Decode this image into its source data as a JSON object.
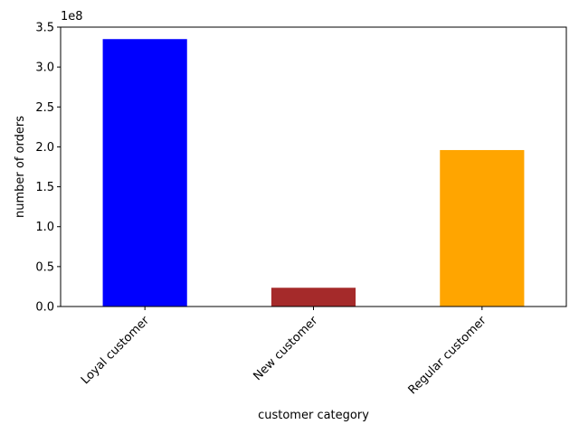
{
  "chart_data": {
    "type": "bar",
    "categories": [
      "Loyal customer",
      "New customer",
      "Regular customer"
    ],
    "values": [
      335000000,
      23500000,
      196000000
    ],
    "colors": [
      "#0000ff",
      "#a52a2a",
      "#ffa500"
    ],
    "xlabel": "customer category",
    "ylabel": "number of orders",
    "y_offset_label": "1e8",
    "ylim": [
      0,
      350000000
    ],
    "yticks": [
      0,
      50000000,
      100000000,
      150000000,
      200000000,
      250000000,
      300000000,
      350000000
    ],
    "ytick_labels": [
      "0.0",
      "0.5",
      "1.0",
      "1.5",
      "2.0",
      "2.5",
      "3.0",
      "3.5"
    ],
    "grid": false,
    "legend": false
  }
}
